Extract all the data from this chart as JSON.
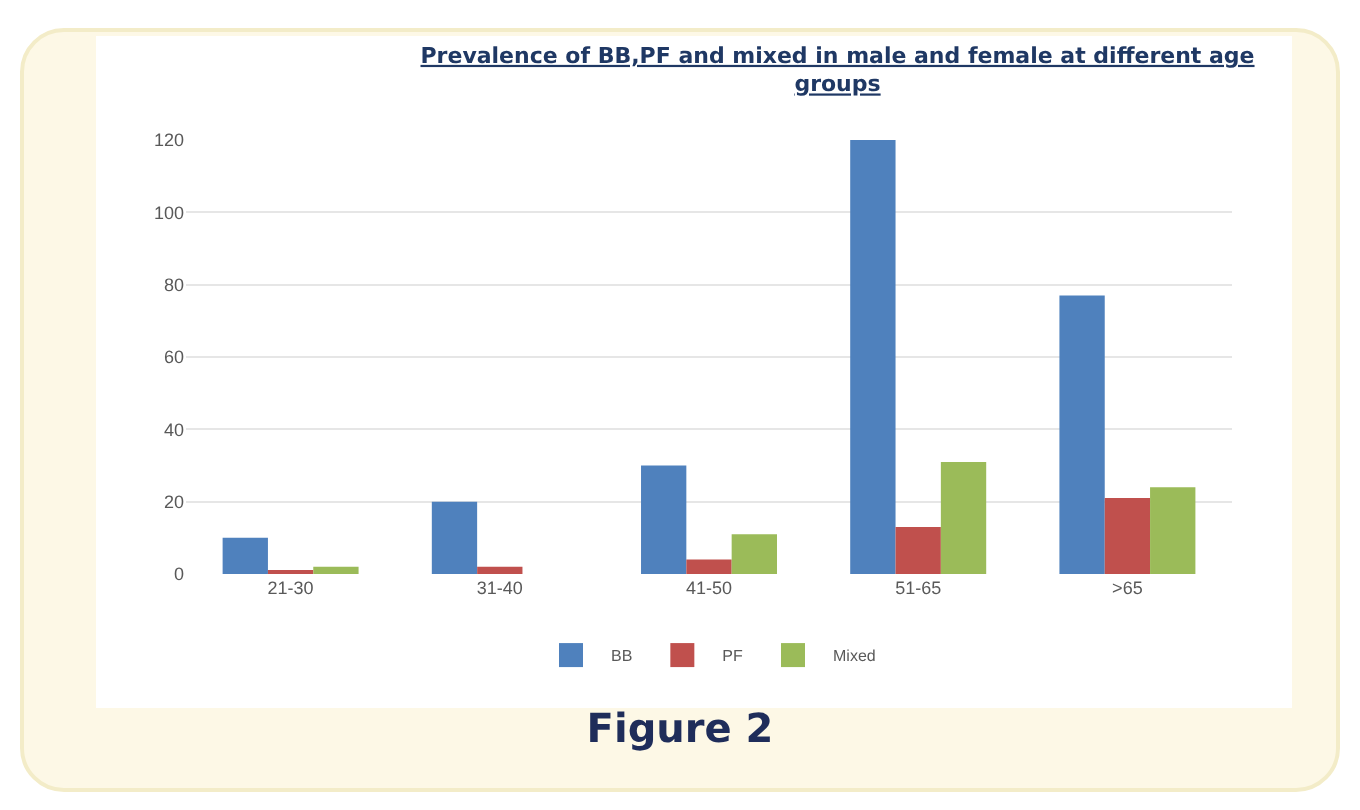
{
  "chart_data": {
    "type": "bar",
    "title": "Prevalence of BB,PF and mixed in male and female at different age groups",
    "categories": [
      "21-30",
      "31-40",
      "41-50",
      "51-65",
      ">65"
    ],
    "series": [
      {
        "name": "BB",
        "color": "#4f81bd",
        "values": [
          10,
          20,
          30,
          120,
          77
        ]
      },
      {
        "name": "PF",
        "color": "#c0504d",
        "values": [
          1,
          2,
          4,
          13,
          21
        ]
      },
      {
        "name": "Mixed",
        "color": "#9bbb59",
        "values": [
          2,
          0,
          11,
          31,
          24
        ]
      }
    ],
    "ylim": [
      0,
      120
    ],
    "yticks": [
      0,
      20,
      40,
      60,
      80,
      100,
      120
    ],
    "grid": "y",
    "legend": "bottom",
    "annotations": [
      "Figure 2"
    ]
  }
}
